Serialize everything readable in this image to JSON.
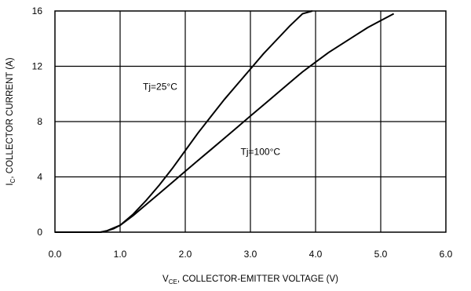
{
  "chart_data": {
    "type": "line",
    "xlabel_parts": [
      "V",
      "CE",
      ", COLLECTOR-EMITTER VOLTAGE (V)"
    ],
    "ylabel_parts": [
      "I",
      "C",
      ", COLLECTOR CURRENT (A)"
    ],
    "xlim": [
      0,
      6
    ],
    "ylim": [
      0,
      16
    ],
    "xticks": [
      "0.0",
      "1.0",
      "2.0",
      "3.0",
      "4.0",
      "5.0",
      "6.0"
    ],
    "yticks": [
      "0",
      "4",
      "8",
      "12",
      "16"
    ],
    "grid": true,
    "series": [
      {
        "name": "Tj=25°C",
        "x": [
          0.0,
          0.7,
          0.8,
          0.9,
          1.0,
          1.2,
          1.4,
          1.6,
          1.8,
          2.0,
          2.2,
          2.4,
          2.6,
          2.8,
          3.0,
          3.2,
          3.4,
          3.6,
          3.8,
          3.95
        ],
        "y": [
          0.0,
          0.0,
          0.1,
          0.25,
          0.5,
          1.3,
          2.3,
          3.4,
          4.6,
          5.9,
          7.2,
          8.4,
          9.6,
          10.7,
          11.8,
          12.9,
          13.9,
          14.9,
          15.8,
          16.0
        ]
      },
      {
        "name": "Tj=100°C",
        "x": [
          0.0,
          0.7,
          0.8,
          0.9,
          1.0,
          1.2,
          1.4,
          1.6,
          1.8,
          2.0,
          2.2,
          2.4,
          2.6,
          2.8,
          3.0,
          3.2,
          3.4,
          3.6,
          3.8,
          4.0,
          4.2,
          4.4,
          4.6,
          4.8,
          5.0,
          5.2
        ],
        "y": [
          0.0,
          0.0,
          0.1,
          0.3,
          0.5,
          1.2,
          2.0,
          2.8,
          3.6,
          4.4,
          5.2,
          6.0,
          6.8,
          7.6,
          8.4,
          9.2,
          10.0,
          10.8,
          11.6,
          12.3,
          13.0,
          13.6,
          14.2,
          14.8,
          15.3,
          15.8
        ]
      }
    ],
    "annotations": [
      {
        "text": "Tj=25°C",
        "series": 0
      },
      {
        "text": "Tj=100°C",
        "series": 1
      }
    ]
  }
}
